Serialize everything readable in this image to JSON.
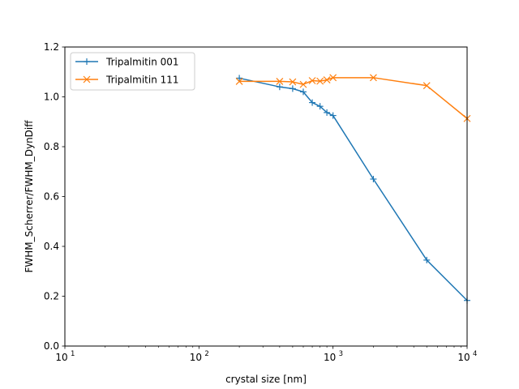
{
  "chart_data": {
    "type": "line",
    "title": "",
    "xlabel": "crystal size [nm]",
    "ylabel": "FWHM_Scherrer/FWHM_DynDiff",
    "x_scale": "log",
    "xlim": [
      10,
      10000
    ],
    "ylim": [
      0.0,
      1.2
    ],
    "grid": false,
    "legend_position": "upper left",
    "x_ticks": [
      {
        "value": 10,
        "base": "10",
        "exp": "1"
      },
      {
        "value": 100,
        "base": "10",
        "exp": "2"
      },
      {
        "value": 1000,
        "base": "10",
        "exp": "3"
      },
      {
        "value": 10000,
        "base": "10",
        "exp": "4"
      }
    ],
    "y_ticks": [
      {
        "value": 0.0,
        "label": "0.0"
      },
      {
        "value": 0.2,
        "label": "0.2"
      },
      {
        "value": 0.4,
        "label": "0.4"
      },
      {
        "value": 0.6,
        "label": "0.6"
      },
      {
        "value": 0.8,
        "label": "0.8"
      },
      {
        "value": 1.0,
        "label": "1.0"
      },
      {
        "value": 1.2,
        "label": "1.2"
      }
    ],
    "series": [
      {
        "name": "Tripalmitin 001",
        "color": "#1f77b4",
        "marker": "plus",
        "points": [
          [
            200,
            1.075
          ],
          [
            400,
            1.04
          ],
          [
            500,
            1.033
          ],
          [
            600,
            1.02
          ],
          [
            700,
            0.977
          ],
          [
            800,
            0.962
          ],
          [
            900,
            0.937
          ],
          [
            1000,
            0.925
          ],
          [
            2000,
            0.67
          ],
          [
            5000,
            0.345
          ],
          [
            10000,
            0.183
          ]
        ]
      },
      {
        "name": "Tripalmitin 111",
        "color": "#ff7f0e",
        "marker": "x",
        "points": [
          [
            200,
            1.062
          ],
          [
            400,
            1.062
          ],
          [
            500,
            1.06
          ],
          [
            600,
            1.05
          ],
          [
            700,
            1.065
          ],
          [
            800,
            1.063
          ],
          [
            900,
            1.068
          ],
          [
            1000,
            1.077
          ],
          [
            2000,
            1.077
          ],
          [
            5000,
            1.045
          ],
          [
            10000,
            0.913
          ]
        ]
      }
    ]
  }
}
